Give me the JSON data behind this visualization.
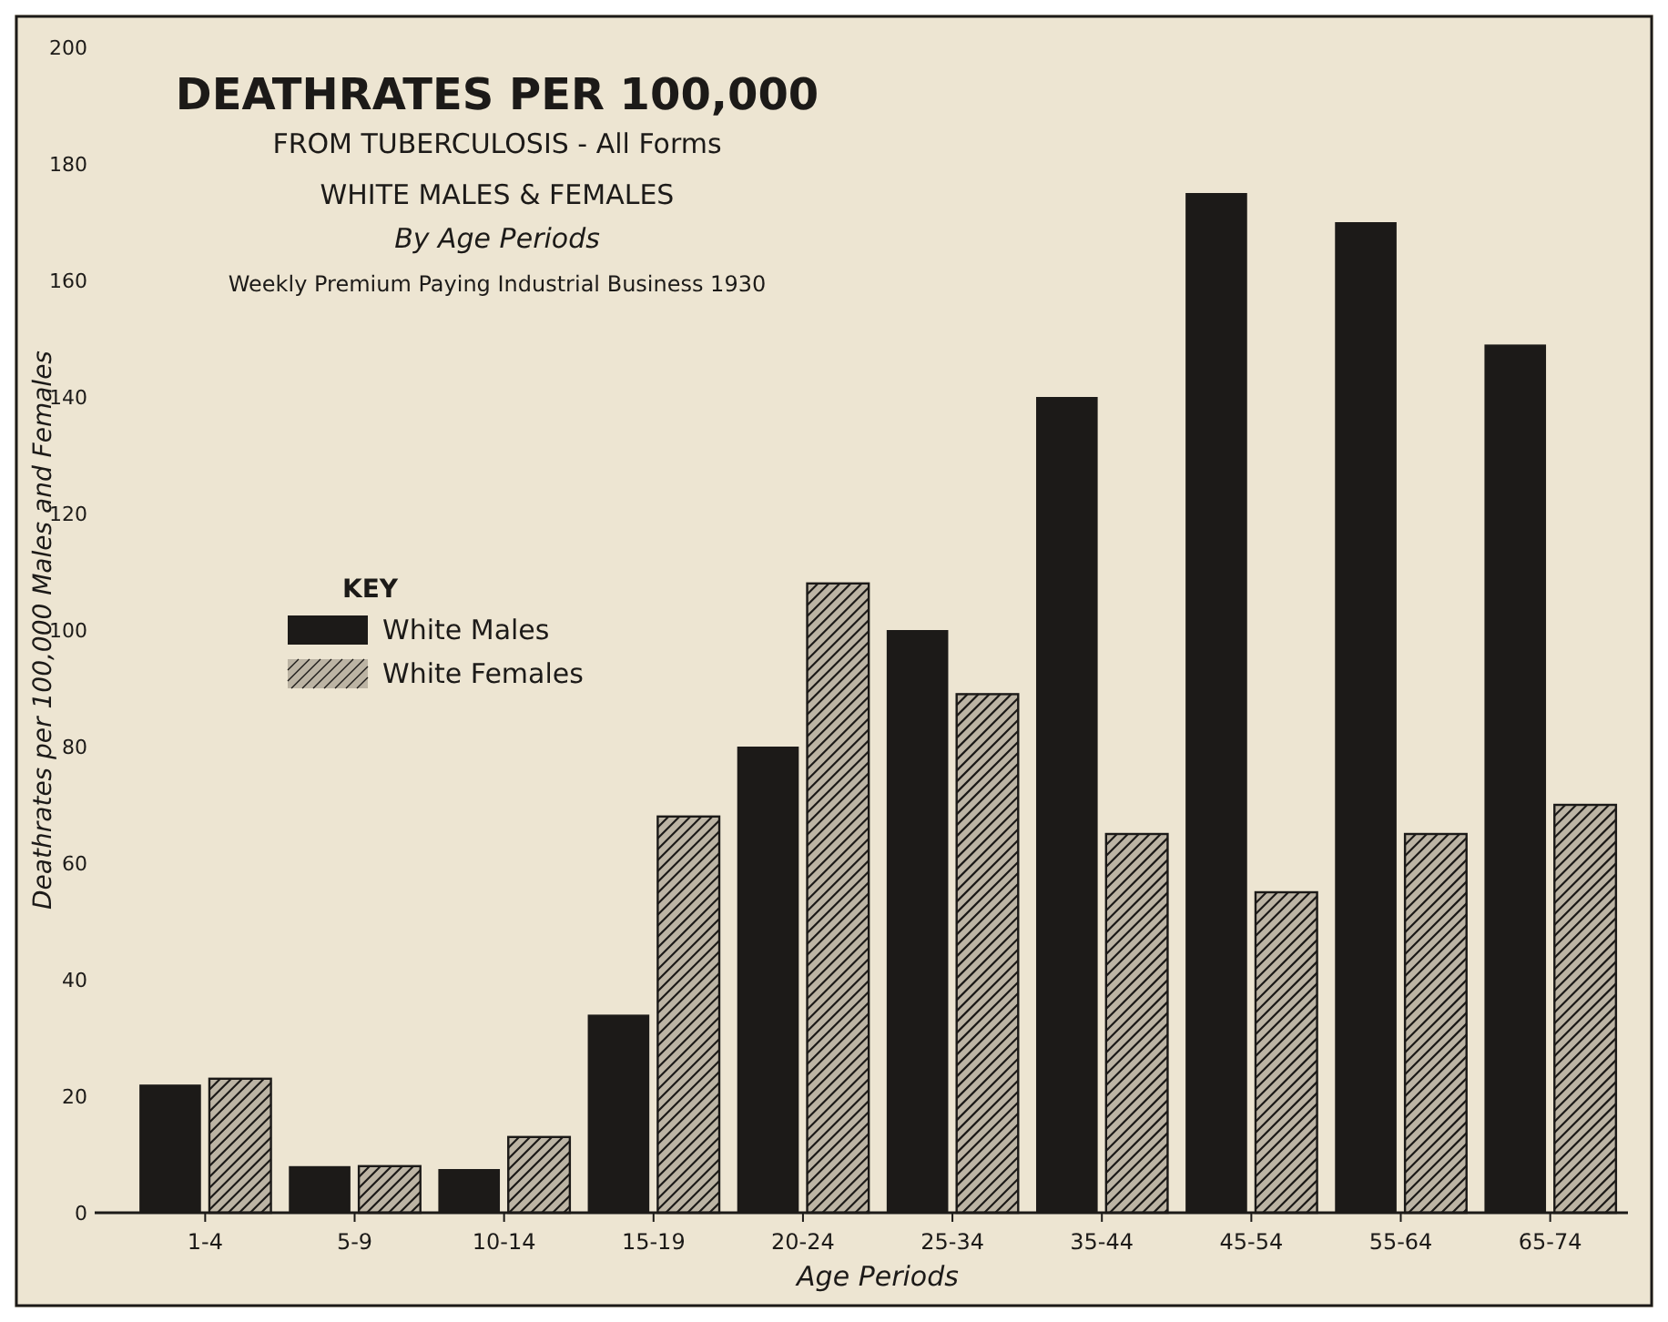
{
  "chart_data": {
    "type": "bar",
    "title": "DEATHRATES PER 100,000",
    "subtitle": "FROM TUBERCULOSIS - All Forms",
    "annotations": [
      "WHITE MALES & FEMALES",
      "By Age Periods",
      "Weekly Premium Paying Industrial Business 1930"
    ],
    "xlabel": "Age Periods",
    "ylabel": "Deathrates per 100,000 Males and Females",
    "legend_title": "KEY",
    "legend": "left",
    "categories": [
      "1-4",
      "5-9",
      "10-14",
      "15-19",
      "20-24",
      "25-34",
      "35-44",
      "45-54",
      "55-64",
      "65-74"
    ],
    "series": [
      {
        "name": "White Males",
        "color": "#1c1a18",
        "values": [
          22,
          8,
          7.5,
          34,
          80,
          100,
          140,
          175,
          170,
          149
        ]
      },
      {
        "name": "White Females",
        "color": "#bcb4a4",
        "values": [
          23,
          8,
          13,
          68,
          108,
          89,
          65,
          55,
          65,
          70
        ]
      }
    ],
    "ylim": [
      0,
      200
    ],
    "yticks": [
      0,
      20,
      40,
      60,
      80,
      100,
      120,
      140,
      160,
      180,
      200
    ],
    "grid": false
  }
}
